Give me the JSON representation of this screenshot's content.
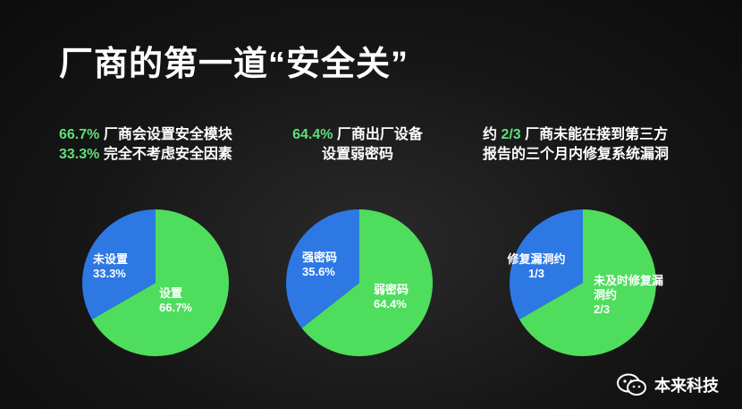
{
  "title": "厂商的第一道“安全关”",
  "captions": [
    {
      "lines": [
        {
          "pct": "66.7%",
          "text": " 厂商会设置安全模块"
        },
        {
          "pct": "33.3%",
          "text": " 完全不考虑安全因素"
        }
      ]
    },
    {
      "lines": [
        {
          "pct": "64.4%",
          "text": " 厂商出厂设备"
        },
        {
          "pct": "",
          "text": "设置弱密码"
        }
      ]
    },
    {
      "lines": [
        {
          "pre": "约 ",
          "pct": "2/3",
          "text": " 厂商未能在接到第三方"
        },
        {
          "pre": "",
          "pct": "",
          "text": "报告的三个月内修复系统漏洞"
        }
      ]
    }
  ],
  "chart_data": [
    {
      "type": "pie",
      "slices": [
        {
          "label": "未设置",
          "display": "33.3%",
          "value": 33.3,
          "color": "#2e78e4"
        },
        {
          "label": "设置",
          "display": "66.7%",
          "value": 66.7,
          "color": "#4fdd5e"
        }
      ]
    },
    {
      "type": "pie",
      "slices": [
        {
          "label": "强密码",
          "display": "35.6%",
          "value": 35.6,
          "color": "#2e78e4"
        },
        {
          "label": "弱密码",
          "display": "64.4%",
          "value": 64.4,
          "color": "#4fdd5e"
        }
      ]
    },
    {
      "type": "pie",
      "slices": [
        {
          "label": "修复漏洞约",
          "display": "1/3",
          "value": 33.3,
          "color": "#2e78e4"
        },
        {
          "label": "未及时修复漏洞约",
          "display": "2/3",
          "value": 66.7,
          "color": "#4fdd5e"
        }
      ]
    }
  ],
  "watermark": {
    "text": "本来科技",
    "icon": "wechat-icon"
  }
}
